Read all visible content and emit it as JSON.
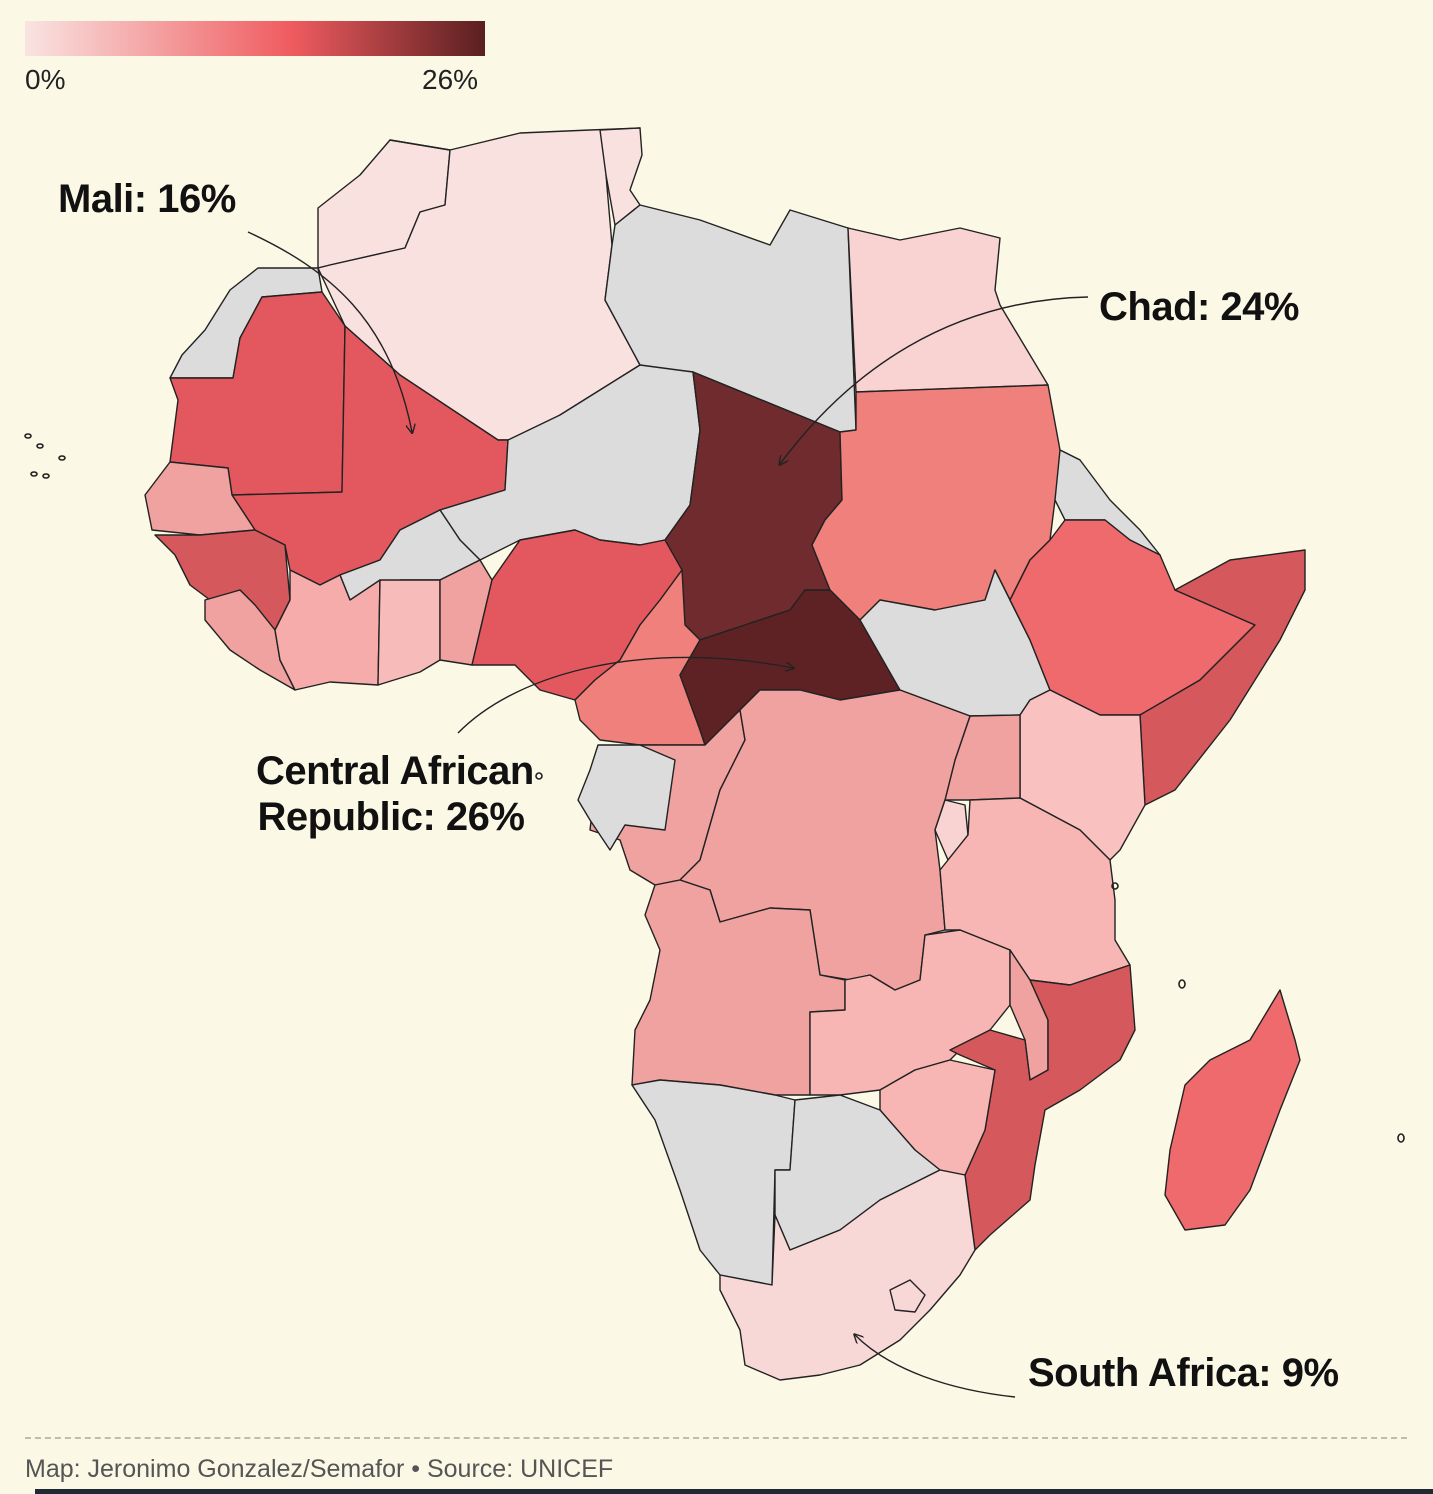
{
  "legend": {
    "min_label": "0%",
    "max_label": "26%",
    "min_value": 0,
    "max_value": 26,
    "color_low": "#f9e4e2",
    "color_mid": "#ef5b5f",
    "color_high": "#5a1f20"
  },
  "annotations": {
    "mali": "Mali: 16%",
    "chad": "Chad: 24%",
    "car_line1": "Central African",
    "car_line2": "Republic: 26%",
    "south_africa": "South Africa: 9%"
  },
  "no_data_color": "#dcdcdc",
  "footer": {
    "credit": "Map: Jeronimo Gonzalez/Semafor • Source: UNICEF"
  }
}
